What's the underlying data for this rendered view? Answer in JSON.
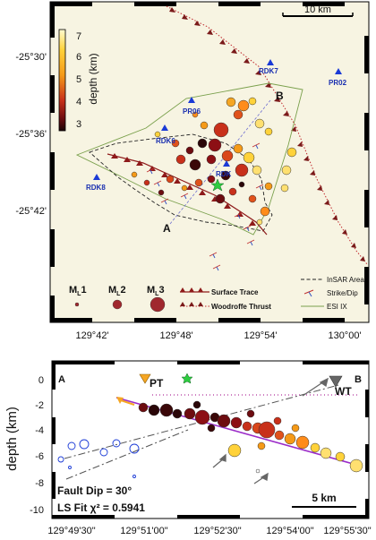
{
  "map": {
    "scalebar_label": "10 km",
    "lat_ticks": [
      "-25°30'",
      "-25°36'",
      "-25°42'"
    ],
    "lon_ticks": [
      "129°42'",
      "129°48'",
      "129°54'",
      "130°00'"
    ],
    "colorbar": {
      "label": "depth (km)",
      "ticks": [
        "7",
        "6",
        "5",
        "4",
        "3"
      ],
      "colors": [
        "#fff7b0",
        "#ffd23a",
        "#f59a18",
        "#d9461b",
        "#8c0f14",
        "#2a0608"
      ]
    },
    "stations": [
      {
        "name": "RDK7"
      },
      {
        "name": "PR02"
      },
      {
        "name": "PR06"
      },
      {
        "name": "RDK6"
      },
      {
        "name": "RDK"
      },
      {
        "name": "RDK8"
      }
    ],
    "section_labels": {
      "start": "A",
      "end": "B"
    },
    "legend": {
      "ml1": "ML1",
      "ml2": "ML2",
      "ml3": "ML3",
      "surface_trace": "Surface Trace",
      "woodroffe": "Woodroffe Thrust",
      "insar": "InSAR Area",
      "strike_dip": "Strike/Dip",
      "esi": "ESI IX"
    }
  },
  "section": {
    "ylabel": "depth (km)",
    "y_ticks": [
      "0",
      "-2",
      "-4",
      "-6",
      "-8",
      "-10"
    ],
    "x_ticks": [
      "129°49'30\"",
      "129°51'00\"",
      "129°52'30\"",
      "129°54'00\"",
      "129°55'30\""
    ],
    "start_label": "A",
    "end_label": "B",
    "pt_label": "PT",
    "wt_label": "WT",
    "fault_dip": "Fault Dip = 30°",
    "ls_fit": "LS Fit χ²  = 0.5941",
    "scalebar_label": "5 km"
  },
  "colors": {
    "station": "#1a3ad6",
    "fault_line": "#8e1a1a",
    "woodroffe": "#c0282e",
    "esi": "#7aa04c",
    "fit_line": "#9b2bc8",
    "epicenter": "#2ecc40",
    "pt_marker": "#f5a623",
    "wt_marker": "#666666"
  }
}
